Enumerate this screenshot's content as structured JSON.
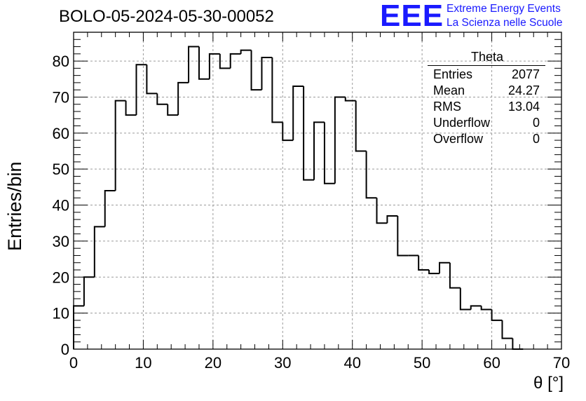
{
  "header": {
    "run_title": "BOLO-05-2024-05-30-00052",
    "logo_text": "EEE",
    "logo_line1": "Extreme Energy Events",
    "logo_line2": "La Scienza nelle Scuole"
  },
  "stats": {
    "title": "Theta",
    "rows": [
      {
        "label": "Entries",
        "value": "2077"
      },
      {
        "label": "Mean",
        "value": "24.27"
      },
      {
        "label": "RMS",
        "value": "13.04"
      },
      {
        "label": "Underflow",
        "value": "0"
      },
      {
        "label": "Overflow",
        "value": "0"
      }
    ]
  },
  "colors": {
    "line": "#000000",
    "grid": "#9a9a9a",
    "brand": "#1a1aff"
  },
  "chart_data": {
    "type": "histogram",
    "xlabel": "θ [°]",
    "ylabel": "Entries/bin",
    "xlim": [
      0,
      70
    ],
    "ylim": [
      0,
      88
    ],
    "bin_width": 1.5,
    "bin_start": 0,
    "values": [
      12,
      20,
      34,
      44,
      69,
      65,
      79,
      71,
      68,
      65,
      74,
      84,
      75,
      82,
      78,
      82,
      83,
      72,
      81,
      63,
      58,
      73,
      47,
      63,
      46,
      70,
      69,
      55,
      42,
      35,
      37,
      26,
      26,
      22,
      21,
      24,
      17,
      11,
      12,
      11,
      8,
      3,
      0
    ],
    "x_ticks": [
      0,
      10,
      20,
      30,
      40,
      50,
      60,
      70
    ],
    "y_ticks": [
      0,
      10,
      20,
      30,
      40,
      50,
      60,
      70,
      80
    ],
    "grid": true
  }
}
